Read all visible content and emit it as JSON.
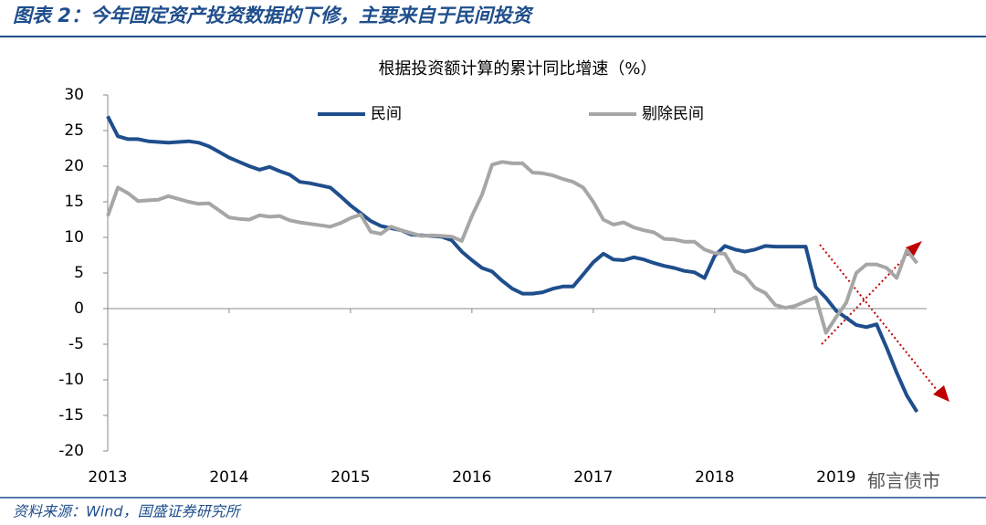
{
  "header": {
    "title": "图表 2：今年固定资产投资数据的下修，主要来自于民间投资"
  },
  "chart_data": {
    "type": "line",
    "title": "根据投资额计算的累计同比增速（%）",
    "categories": [
      "2013",
      null,
      null,
      null,
      null,
      null,
      null,
      null,
      null,
      null,
      null,
      null,
      "2014",
      null,
      null,
      null,
      null,
      null,
      null,
      null,
      null,
      null,
      null,
      null,
      "2015",
      null,
      null,
      null,
      null,
      null,
      null,
      null,
      null,
      null,
      null,
      null,
      "2016",
      null,
      null,
      null,
      null,
      null,
      null,
      null,
      null,
      null,
      null,
      null,
      "2017",
      null,
      null,
      null,
      null,
      null,
      null,
      null,
      null,
      null,
      null,
      null,
      "2018",
      null,
      null,
      null,
      null,
      null,
      null,
      null,
      null,
      null,
      null,
      null,
      "2019",
      null,
      null,
      null,
      null,
      null,
      null,
      null,
      null
    ],
    "series": [
      {
        "name": "民间",
        "color": "#1f4e8c",
        "values": [
          27,
          24.2,
          23.8,
          23.8,
          23.5,
          23.4,
          23.3,
          23.4,
          23.5,
          23.3,
          22.8,
          22.0,
          21.2,
          20.6,
          20.0,
          19.5,
          19.9,
          19.3,
          18.8,
          17.8,
          17.6,
          17.3,
          17.0,
          15.8,
          14.5,
          13.4,
          12.3,
          11.6,
          11.3,
          11.0,
          10.4,
          10.3,
          10.2,
          10.1,
          9.6,
          8.0,
          6.8,
          5.7,
          5.2,
          3.9,
          2.8,
          2.1,
          2.1,
          2.3,
          2.8,
          3.1,
          3.1,
          4.8,
          6.5,
          7.7,
          6.9,
          6.8,
          7.2,
          6.9,
          6.4,
          6.0,
          5.7,
          5.3,
          5.1,
          4.3,
          7.4,
          8.8,
          8.3,
          8.0,
          8.3,
          8.8,
          8.7,
          8.7,
          8.7,
          8.7,
          3.0,
          1.5,
          -0.3,
          -1.3,
          -2.3,
          -2.6,
          -2.2,
          -5.5,
          -9,
          -12.2,
          -14.5
        ]
      },
      {
        "name": "剔除民间",
        "color": "#a6a6a6",
        "values": [
          13,
          17,
          16.2,
          15.1,
          15.2,
          15.3,
          15.8,
          15.4,
          15.0,
          14.7,
          14.8,
          13.8,
          12.8,
          12.6,
          12.5,
          13.1,
          12.9,
          13.0,
          12.4,
          12.1,
          11.9,
          11.7,
          11.5,
          12.0,
          12.7,
          13.2,
          10.8,
          10.5,
          11.5,
          11.0,
          10.6,
          10.2,
          10.3,
          10.2,
          10.1,
          9.5,
          13,
          16,
          20.2,
          20.6,
          20.4,
          20.4,
          19.1,
          19.0,
          18.7,
          18.2,
          17.8,
          17.0,
          15,
          12.5,
          11.8,
          12.1,
          11.4,
          11.0,
          10.7,
          9.8,
          9.7,
          9.4,
          9.4,
          8.3,
          7.8,
          7.7,
          5.3,
          4.6,
          2.9,
          2.2,
          0.5,
          0.1,
          0.4,
          1.0,
          1.6,
          -3.4,
          -1.2,
          0.8,
          5.0,
          6.2,
          6.2,
          5.7,
          4.3,
          8.2,
          6.4
        ]
      }
    ],
    "ylim": [
      -20,
      30
    ],
    "yticks": [
      -20,
      -15,
      -10,
      -5,
      0,
      5,
      10,
      15,
      20,
      25,
      30
    ],
    "grid": false
  },
  "watermark": "郁言债市",
  "source": "资料来源：Wind，国盛证券研究所"
}
